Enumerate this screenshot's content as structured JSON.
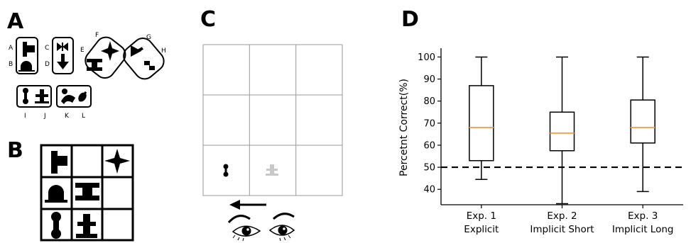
{
  "panels": {
    "a": "A",
    "b": "B",
    "c": "C",
    "d": "D"
  },
  "panel_a": {
    "shape_labels": [
      "A",
      "B",
      "C",
      "D",
      "E",
      "F",
      "G",
      "H",
      "I",
      "J",
      "K",
      "L"
    ]
  },
  "panel_c": {
    "grid_rows": 3,
    "grid_cols": 3,
    "arrow_direction": "left"
  },
  "colors": {
    "median": "#f5a25a",
    "ink": "#000000",
    "grid": "#9a9a9a",
    "faded_shape": "#c8c8c8"
  },
  "chart_data": {
    "type": "box",
    "ylabel": "Percetnt Correct(%)",
    "yticks": [
      40,
      50,
      60,
      70,
      80,
      90,
      100
    ],
    "ylim": [
      33,
      104
    ],
    "categories": [
      {
        "line1": "Exp. 1",
        "line2": "Explicit"
      },
      {
        "line1": "Exp. 2",
        "line2": "Implicit Short"
      },
      {
        "line1": "Exp. 3",
        "line2": "Implicit Long"
      }
    ],
    "boxes": [
      {
        "min": 44.5,
        "q1": 53,
        "median": 68,
        "q3": 87,
        "max": 100
      },
      {
        "min": 33.5,
        "q1": 57.5,
        "median": 65.5,
        "q3": 75,
        "max": 100
      },
      {
        "min": 39,
        "q1": 61,
        "median": 68,
        "q3": 80.5,
        "max": 100
      }
    ],
    "reference_line": 50
  }
}
